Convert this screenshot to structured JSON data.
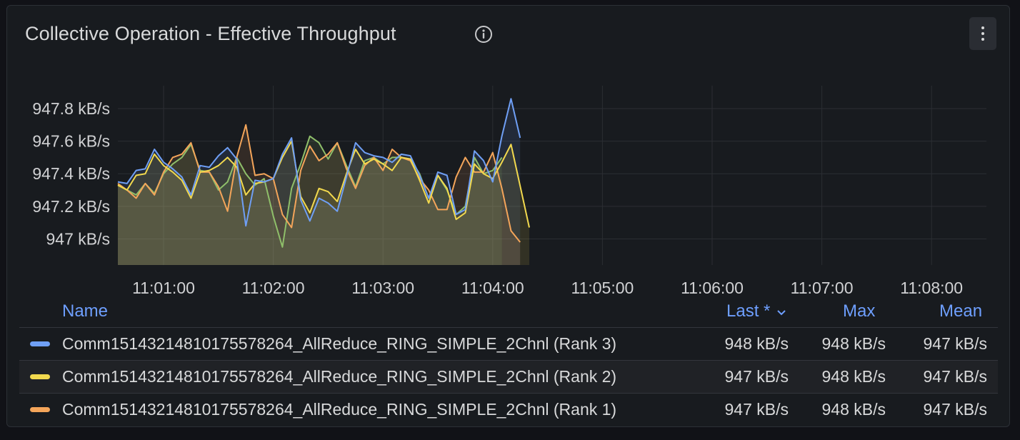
{
  "panel": {
    "title": "Collective Operation - Effective Throughput"
  },
  "icons": {
    "info": "info-circle-icon",
    "menu": "vertical-ellipsis-icon"
  },
  "colors": {
    "rank3": "#6f9ff5",
    "rank2": "#f2d94e",
    "rank1": "#f4a55a",
    "rank0": "#8fbf6a",
    "area_fill": "#4b4a33",
    "accent_blue": "#6e9fff"
  },
  "legend": {
    "headers": {
      "name": "Name",
      "last": "Last *",
      "max": "Max",
      "mean": "Mean"
    },
    "rows": [
      {
        "name": "Comm15143214810175578264_AllReduce_RING_SIMPLE_2Chnl (Rank 3)",
        "last": "948 kB/s",
        "max": "948 kB/s",
        "mean": "947 kB/s",
        "color": "#6f9ff5"
      },
      {
        "name": "Comm15143214810175578264_AllReduce_RING_SIMPLE_2Chnl (Rank 2)",
        "last": "947 kB/s",
        "max": "948 kB/s",
        "mean": "947 kB/s",
        "color": "#f2d94e"
      },
      {
        "name": "Comm15143214810175578264_AllReduce_RING_SIMPLE_2Chnl (Rank 1)",
        "last": "947 kB/s",
        "max": "948 kB/s",
        "mean": "947 kB/s",
        "color": "#f4a55a"
      }
    ]
  },
  "chart_data": {
    "type": "area",
    "title": "Collective Operation - Effective Throughput",
    "xlabel": "",
    "ylabel": "",
    "y_unit": "kB/s",
    "x_ticks": [
      "11:01:00",
      "11:02:00",
      "11:03:00",
      "11:04:00",
      "11:05:00",
      "11:06:00",
      "11:07:00",
      "11:08:00"
    ],
    "x_range": [
      "11:00:35",
      "11:08:30"
    ],
    "y_ticks": [
      {
        "value": 947.0,
        "label": "947 kB/s"
      },
      {
        "value": 947.2,
        "label": "947.2 kB/s"
      },
      {
        "value": 947.4,
        "label": "947.4 kB/s"
      },
      {
        "value": 947.6,
        "label": "947.6 kB/s"
      },
      {
        "value": 947.8,
        "label": "947.8 kB/s"
      }
    ],
    "ylim": [
      946.84,
      947.94
    ],
    "grid": true,
    "legend_placement": "bottom",
    "fill_range": [
      "11:00:35",
      "11:04:10"
    ],
    "series": [
      {
        "name": "Comm15143214810175578264_AllReduce_RING_SIMPLE_2Chnl (Rank 3)",
        "color": "#6f9ff5",
        "points": [
          [
            "11:00:35",
            947.35
          ],
          [
            "11:00:40",
            947.34
          ],
          [
            "11:00:45",
            947.42
          ],
          [
            "11:00:50",
            947.43
          ],
          [
            "11:00:55",
            947.55
          ],
          [
            "11:01:00",
            947.47
          ],
          [
            "11:01:05",
            947.43
          ],
          [
            "11:01:10",
            947.38
          ],
          [
            "11:01:15",
            947.27
          ],
          [
            "11:01:20",
            947.45
          ],
          [
            "11:01:25",
            947.44
          ],
          [
            "11:01:30",
            947.51
          ],
          [
            "11:01:35",
            947.56
          ],
          [
            "11:01:40",
            947.49
          ],
          [
            "11:01:45",
            947.08
          ],
          [
            "11:01:50",
            947.36
          ],
          [
            "11:01:55",
            947.35
          ],
          [
            "11:02:00",
            947.37
          ],
          [
            "11:02:05",
            947.52
          ],
          [
            "11:02:10",
            947.62
          ],
          [
            "11:02:15",
            947.24
          ],
          [
            "11:02:20",
            947.11
          ],
          [
            "11:02:25",
            947.25
          ],
          [
            "11:02:30",
            947.22
          ],
          [
            "11:02:35",
            947.17
          ],
          [
            "11:02:40",
            947.38
          ],
          [
            "11:02:45",
            947.59
          ],
          [
            "11:02:50",
            947.53
          ],
          [
            "11:02:55",
            947.51
          ],
          [
            "11:03:00",
            947.5
          ],
          [
            "11:03:05",
            947.47
          ],
          [
            "11:03:10",
            947.52
          ],
          [
            "11:03:15",
            947.51
          ],
          [
            "11:03:20",
            947.39
          ],
          [
            "11:03:25",
            947.25
          ],
          [
            "11:03:30",
            947.41
          ],
          [
            "11:03:35",
            947.39
          ],
          [
            "11:03:40",
            947.15
          ],
          [
            "11:03:45",
            947.18
          ],
          [
            "11:03:50",
            947.54
          ],
          [
            "11:03:55",
            947.48
          ],
          [
            "11:04:00",
            947.35
          ],
          [
            "11:04:05",
            947.63
          ],
          [
            "11:04:10",
            947.86
          ],
          [
            "11:04:15",
            947.62
          ]
        ]
      },
      {
        "name": "Comm15143214810175578264_AllReduce_RING_SIMPLE_2Chnl (Rank 2)",
        "color": "#f2d94e",
        "points": [
          [
            "11:00:35",
            947.33
          ],
          [
            "11:00:40",
            947.3
          ],
          [
            "11:00:45",
            947.39
          ],
          [
            "11:00:50",
            947.4
          ],
          [
            "11:00:55",
            947.52
          ],
          [
            "11:01:00",
            947.45
          ],
          [
            "11:01:05",
            947.41
          ],
          [
            "11:01:10",
            947.36
          ],
          [
            "11:01:15",
            947.25
          ],
          [
            "11:01:20",
            947.41
          ],
          [
            "11:01:25",
            947.42
          ],
          [
            "11:01:30",
            947.45
          ],
          [
            "11:01:35",
            947.5
          ],
          [
            "11:01:40",
            947.44
          ],
          [
            "11:01:45",
            947.27
          ],
          [
            "11:01:50",
            947.34
          ],
          [
            "11:01:55",
            947.35
          ],
          [
            "11:02:00",
            947.37
          ],
          [
            "11:02:05",
            947.5
          ],
          [
            "11:02:10",
            947.6
          ],
          [
            "11:02:15",
            947.26
          ],
          [
            "11:02:20",
            947.16
          ],
          [
            "11:02:25",
            947.31
          ],
          [
            "11:02:30",
            947.29
          ],
          [
            "11:02:35",
            947.23
          ],
          [
            "11:02:40",
            947.4
          ],
          [
            "11:02:45",
            947.55
          ],
          [
            "11:02:50",
            947.46
          ],
          [
            "11:02:55",
            947.49
          ],
          [
            "11:03:00",
            947.46
          ],
          [
            "11:03:05",
            947.42
          ],
          [
            "11:03:10",
            947.5
          ],
          [
            "11:03:15",
            947.49
          ],
          [
            "11:03:20",
            947.36
          ],
          [
            "11:03:25",
            947.22
          ],
          [
            "11:03:30",
            947.39
          ],
          [
            "11:03:35",
            947.31
          ],
          [
            "11:03:40",
            947.12
          ],
          [
            "11:03:45",
            947.16
          ],
          [
            "11:03:50",
            947.46
          ],
          [
            "11:03:55",
            947.4
          ],
          [
            "11:04:00",
            947.37
          ],
          [
            "11:04:05",
            947.47
          ],
          [
            "11:04:10",
            947.58
          ],
          [
            "11:04:20",
            947.07
          ]
        ]
      },
      {
        "name": "Comm15143214810175578264_AllReduce_RING_SIMPLE_2Chnl (Rank 1)",
        "color": "#f4a55a",
        "points": [
          [
            "11:00:35",
            947.34
          ],
          [
            "11:00:40",
            947.3
          ],
          [
            "11:00:45",
            947.25
          ],
          [
            "11:00:50",
            947.34
          ],
          [
            "11:00:55",
            947.27
          ],
          [
            "11:01:00",
            947.41
          ],
          [
            "11:01:05",
            947.5
          ],
          [
            "11:01:10",
            947.52
          ],
          [
            "11:01:15",
            947.59
          ],
          [
            "11:01:20",
            947.41
          ],
          [
            "11:01:25",
            947.41
          ],
          [
            "11:01:30",
            947.32
          ],
          [
            "11:01:35",
            947.17
          ],
          [
            "11:01:40",
            947.5
          ],
          [
            "11:01:45",
            947.7
          ],
          [
            "11:01:50",
            947.39
          ],
          [
            "11:01:55",
            947.4
          ],
          [
            "11:02:00",
            947.37
          ],
          [
            "11:02:05",
            947.15
          ],
          [
            "11:02:10",
            947.07
          ],
          [
            "11:02:15",
            947.42
          ],
          [
            "11:02:20",
            947.57
          ],
          [
            "11:02:25",
            947.48
          ],
          [
            "11:02:30",
            947.52
          ],
          [
            "11:02:35",
            947.59
          ],
          [
            "11:02:40",
            947.43
          ],
          [
            "11:02:45",
            947.31
          ],
          [
            "11:02:50",
            947.45
          ],
          [
            "11:02:55",
            947.5
          ],
          [
            "11:03:00",
            947.42
          ],
          [
            "11:03:05",
            947.55
          ],
          [
            "11:03:10",
            947.5
          ],
          [
            "11:03:15",
            947.48
          ],
          [
            "11:03:20",
            947.37
          ],
          [
            "11:03:25",
            947.3
          ],
          [
            "11:03:30",
            947.18
          ],
          [
            "11:03:35",
            947.18
          ],
          [
            "11:03:40",
            947.38
          ],
          [
            "11:03:45",
            947.5
          ],
          [
            "11:03:50",
            947.41
          ],
          [
            "11:03:55",
            947.41
          ],
          [
            "11:04:00",
            947.53
          ],
          [
            "11:04:05",
            947.31
          ],
          [
            "11:04:10",
            947.05
          ],
          [
            "11:04:15",
            946.98
          ]
        ]
      },
      {
        "name": "",
        "color": "#8fbf6a",
        "points": [
          [
            "11:00:35",
            947.33
          ],
          [
            "11:00:40",
            947.3
          ],
          [
            "11:00:45",
            947.27
          ],
          [
            "11:00:50",
            947.34
          ],
          [
            "11:00:55",
            947.28
          ],
          [
            "11:01:00",
            947.4
          ],
          [
            "11:01:05",
            947.46
          ],
          [
            "11:01:10",
            947.5
          ],
          [
            "11:01:15",
            947.58
          ],
          [
            "11:01:20",
            947.42
          ],
          [
            "11:01:25",
            947.41
          ],
          [
            "11:01:30",
            947.3
          ],
          [
            "11:01:35",
            947.35
          ],
          [
            "11:01:40",
            947.5
          ],
          [
            "11:01:45",
            947.4
          ],
          [
            "11:01:50",
            947.33
          ],
          [
            "11:01:55",
            947.37
          ],
          [
            "11:02:00",
            947.14
          ],
          [
            "11:02:05",
            946.95
          ],
          [
            "11:02:10",
            947.31
          ],
          [
            "11:02:15",
            947.46
          ],
          [
            "11:02:20",
            947.63
          ],
          [
            "11:02:25",
            947.59
          ],
          [
            "11:02:30",
            947.49
          ],
          [
            "11:02:35",
            947.59
          ],
          [
            "11:02:40",
            947.45
          ],
          [
            "11:02:45",
            947.32
          ],
          [
            "11:02:50",
            947.48
          ],
          [
            "11:02:55",
            947.5
          ],
          [
            "11:03:00",
            947.46
          ],
          [
            "11:03:05",
            947.5
          ],
          [
            "11:03:10",
            947.5
          ],
          [
            "11:03:15",
            947.49
          ],
          [
            "11:03:20",
            947.4
          ],
          [
            "11:03:25",
            947.25
          ],
          [
            "11:03:30",
            947.39
          ],
          [
            "11:03:35",
            947.3
          ],
          [
            "11:03:40",
            947.15
          ],
          [
            "11:03:45",
            947.2
          ],
          [
            "11:03:50",
            947.5
          ],
          [
            "11:03:55",
            947.4
          ],
          [
            "11:04:00",
            947.42
          ],
          [
            "11:04:05",
            947.5
          ]
        ]
      }
    ]
  }
}
